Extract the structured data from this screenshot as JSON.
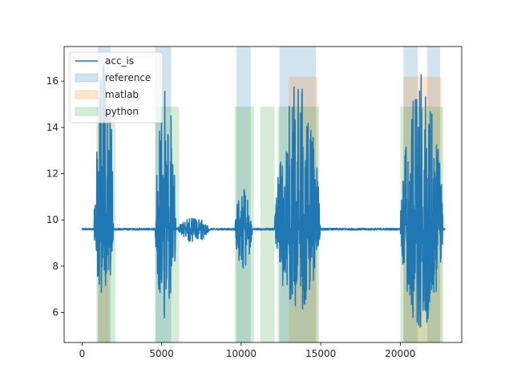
{
  "chart_data": {
    "type": "line",
    "title": "",
    "xlabel": "",
    "ylabel": "",
    "xlim": [
      -1130,
      23860
    ],
    "ylim": [
      4.7,
      17.5
    ],
    "xticks": [
      0,
      5000,
      10000,
      15000,
      20000
    ],
    "yticks": [
      6,
      8,
      10,
      12,
      14,
      16
    ],
    "xtick_labels": [
      "0",
      "5000",
      "10000",
      "15000",
      "20000"
    ],
    "ytick_labels": [
      "6",
      "8",
      "10",
      "12",
      "14",
      "16"
    ],
    "grid": false,
    "legend": {
      "placement": "top-left",
      "entries": [
        "acc_is",
        "reference",
        "matlab",
        "python"
      ]
    },
    "series": [
      {
        "name": "acc_is",
        "kind": "line",
        "color": "#1f77b4",
        "baseline": 9.6,
        "bursts": [
          {
            "start": 750,
            "end": 2000,
            "min": 6.6,
            "max": 17.5
          },
          {
            "start": 4600,
            "end": 5900,
            "min": 5.3,
            "max": 16.5
          },
          {
            "start": 6000,
            "end": 8000,
            "min": 9.0,
            "max": 10.1
          },
          {
            "start": 9600,
            "end": 10700,
            "min": 7.8,
            "max": 11.4
          },
          {
            "start": 12100,
            "end": 15000,
            "min": 6.0,
            "max": 16.0
          },
          {
            "start": 20000,
            "end": 22700,
            "min": 5.2,
            "max": 16.3
          }
        ]
      },
      {
        "name": "reference",
        "kind": "span",
        "color": "#1f77b4",
        "y_range": [
          4.7,
          17.5
        ],
        "intervals": [
          [
            1000,
            1800
          ],
          [
            4600,
            5600
          ],
          [
            9700,
            10600
          ],
          [
            12400,
            14700
          ],
          [
            20200,
            21100
          ],
          [
            21700,
            22500
          ]
        ]
      },
      {
        "name": "matlab",
        "kind": "span",
        "color": "#ff7f0e",
        "y_range": [
          4.7,
          16.2
        ],
        "intervals": [
          [
            1000,
            1700
          ],
          [
            13000,
            14800
          ],
          [
            20200,
            22600
          ]
        ]
      },
      {
        "name": "python",
        "kind": "span",
        "color": "#2ca02c",
        "y_range": [
          4.7,
          14.9
        ],
        "intervals": [
          [
            900,
            2100
          ],
          [
            4600,
            6100
          ],
          [
            9600,
            10800
          ],
          [
            11200,
            12100
          ],
          [
            12300,
            14900
          ],
          [
            20000,
            22700
          ]
        ]
      }
    ]
  }
}
